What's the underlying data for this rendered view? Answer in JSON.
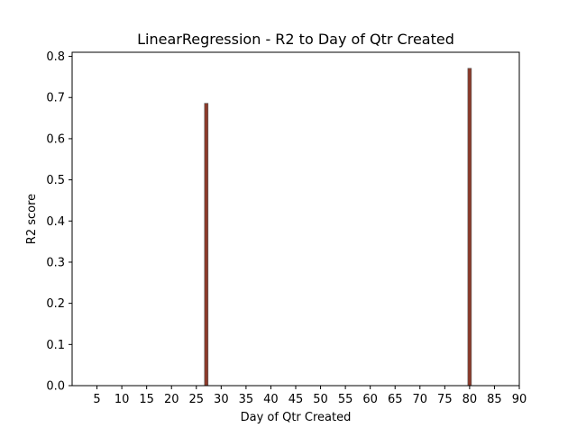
{
  "chart_data": {
    "type": "bar",
    "title": "LinearRegression - R2 to Day of Qtr Created",
    "xlabel": "Day of Qtr Created",
    "ylabel": "R2 score",
    "x_range": [
      0,
      90
    ],
    "ylim": [
      0,
      0.81
    ],
    "xticks": [
      5,
      10,
      15,
      20,
      25,
      30,
      35,
      40,
      45,
      50,
      55,
      60,
      65,
      70,
      75,
      80,
      85,
      90
    ],
    "yticks": [
      0.0,
      0.1,
      0.2,
      0.3,
      0.4,
      0.5,
      0.6,
      0.7,
      0.8
    ],
    "xtick_labels": [
      "5",
      "10",
      "15",
      "20",
      "25",
      "30",
      "35",
      "40",
      "45",
      "50",
      "55",
      "60",
      "65",
      "70",
      "75",
      "80",
      "85",
      "90"
    ],
    "ytick_labels": [
      "0.0",
      "0.1",
      "0.2",
      "0.3",
      "0.4",
      "0.5",
      "0.6",
      "0.7",
      "0.8"
    ],
    "bars": [
      {
        "x": 27,
        "value": 0.686
      },
      {
        "x": 80,
        "value": 0.771
      }
    ],
    "bar_color": "#8b3a2a",
    "bar_edge_color": "#5a5a5a",
    "grid": false,
    "legend": "none"
  }
}
